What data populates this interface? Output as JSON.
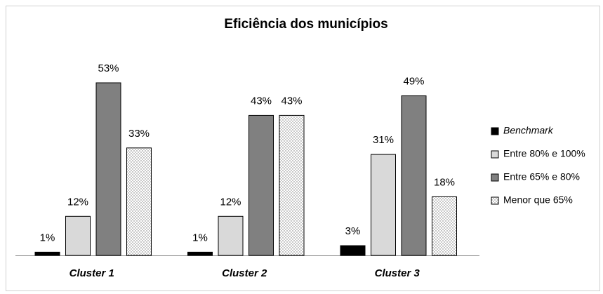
{
  "chart_data": {
    "type": "bar",
    "title": "Eficiência dos municípios",
    "categories": [
      "Cluster 1",
      "Cluster 2",
      "Cluster 3"
    ],
    "series": [
      {
        "name": "Benchmark",
        "color": "#000000",
        "values": [
          1,
          1,
          3
        ],
        "value_labels": [
          "1%",
          "1%",
          "3%"
        ]
      },
      {
        "name": "Entre 80% e 100%",
        "color": "#d9d9d9",
        "values": [
          12,
          12,
          31
        ],
        "value_labels": [
          "12%",
          "12%",
          "31%"
        ]
      },
      {
        "name": "Entre 65% e 80%",
        "color": "#808080",
        "values": [
          53,
          43,
          49
        ],
        "value_labels": [
          "53%",
          "43%",
          "49%"
        ]
      },
      {
        "name": "Menor que 65%",
        "color": "#ffffff",
        "pattern": "dots",
        "values": [
          33,
          43,
          18
        ],
        "value_labels": [
          "33%",
          "43%",
          "18%"
        ]
      }
    ],
    "legend": "right"
  }
}
